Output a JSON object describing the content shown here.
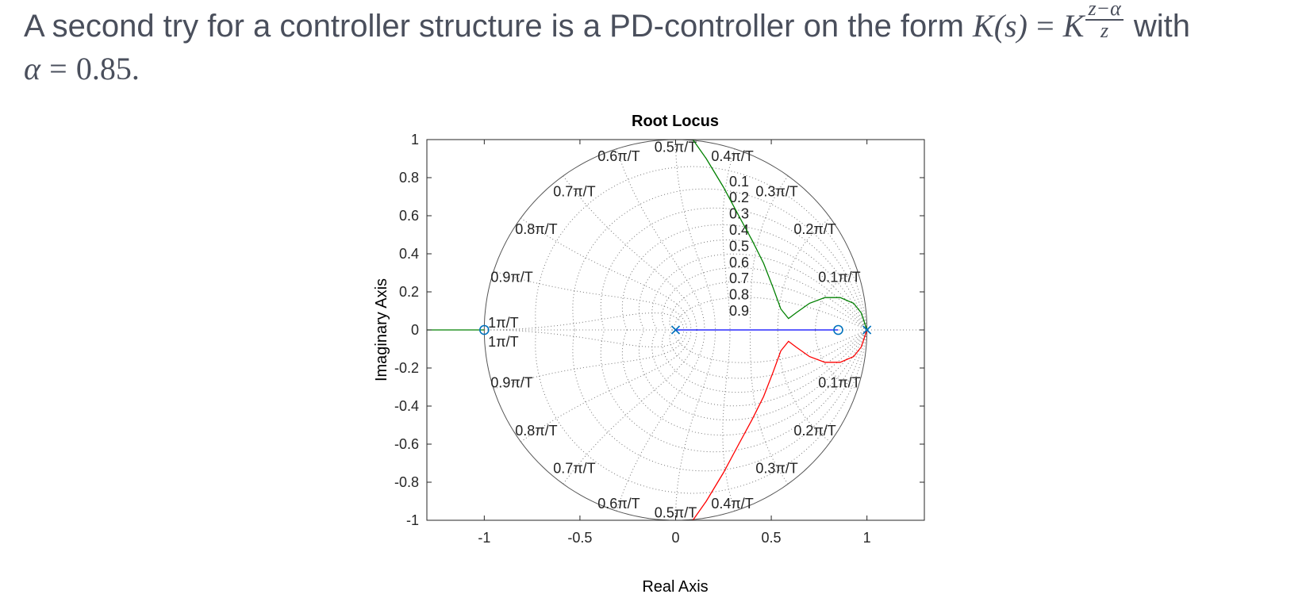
{
  "slide": {
    "intro": "A second try for a controller structure is a PD-controller on the form",
    "math_lhs": "K(s)",
    "math_eq": "=",
    "math_K": "K",
    "frac_num": "z−α",
    "frac_den": "z",
    "with": "with",
    "alpha_sym": "α",
    "alpha_val": "0.85."
  },
  "chart_data": {
    "type": "line",
    "title": "Root Locus",
    "xlabel": "Real Axis",
    "ylabel": "Imaginary Axis",
    "xlim": [
      -1.3,
      1.3
    ],
    "ylim": [
      -1,
      1
    ],
    "xticks": [
      -1,
      -0.5,
      0,
      0.5,
      1
    ],
    "xtick_labels": [
      "-1",
      "-0.5",
      "0",
      "0.5",
      "1"
    ],
    "yticks": [
      1,
      0.8,
      0.6,
      0.4,
      0.2,
      0,
      -0.2,
      -0.4,
      -0.6,
      -0.8,
      -1
    ],
    "ytick_labels": [
      "1",
      "0.8",
      "0.6",
      "0.4",
      "0.2",
      "0",
      "-0.2",
      "-0.4",
      "-0.6",
      "-0.8",
      "-1"
    ],
    "grid": "zgrid",
    "zeta_grid": [
      0.1,
      0.2,
      0.3,
      0.4,
      0.5,
      0.6,
      0.7,
      0.8,
      0.9
    ],
    "wn_grid": [
      0.1,
      0.2,
      0.3,
      0.4,
      0.5,
      0.6,
      0.7,
      0.8,
      0.9,
      1
    ],
    "zeta_labels": [
      "0.1",
      "0.2",
      "0.3",
      "0.4",
      "0.5",
      "0.6",
      "0.7",
      "0.8",
      "0.9"
    ],
    "wn_labels_upper": [
      "0.1π/T",
      "0.2π/T",
      "0.3π/T",
      "0.4π/T",
      "0.5π/T",
      "0.6π/T",
      "0.7π/T",
      "0.8π/T",
      "0.9π/T",
      "1π/T"
    ],
    "wn_labels_lower": [
      "0.1π/T",
      "0.2π/T",
      "0.3π/T",
      "0.4π/T",
      "0.5π/T",
      "0.6π/T",
      "0.7π/T",
      "0.8π/T",
      "0.9π/T",
      "1π/T"
    ],
    "poles": [
      [
        0,
        0
      ],
      [
        1,
        0
      ]
    ],
    "zeros": [
      [
        -1,
        0
      ],
      [
        0.85,
        0
      ]
    ],
    "series": [
      {
        "color": "#0000ff",
        "points": [
          [
            0,
            0
          ],
          [
            0.85,
            0
          ]
        ]
      },
      {
        "color": "#008000",
        "points": [
          [
            0.09,
            1
          ],
          [
            0.16,
            0.9
          ],
          [
            0.25,
            0.75
          ],
          [
            0.33,
            0.6
          ],
          [
            0.4,
            0.47
          ],
          [
            0.46,
            0.35
          ],
          [
            0.51,
            0.22
          ],
          [
            0.55,
            0.11
          ],
          [
            0.59,
            0.06
          ],
          [
            0.63,
            0.09
          ],
          [
            0.7,
            0.14
          ],
          [
            0.78,
            0.17
          ],
          [
            0.86,
            0.17
          ],
          [
            0.93,
            0.14
          ],
          [
            0.97,
            0.09
          ],
          [
            1,
            0
          ]
        ]
      },
      {
        "color": "#ff0000",
        "points": [
          [
            0.09,
            -1
          ],
          [
            0.16,
            -0.9
          ],
          [
            0.25,
            -0.75
          ],
          [
            0.33,
            -0.6
          ],
          [
            0.4,
            -0.47
          ],
          [
            0.46,
            -0.35
          ],
          [
            0.51,
            -0.22
          ],
          [
            0.55,
            -0.11
          ],
          [
            0.59,
            -0.06
          ],
          [
            0.63,
            -0.09
          ],
          [
            0.7,
            -0.14
          ],
          [
            0.78,
            -0.17
          ],
          [
            0.86,
            -0.17
          ],
          [
            0.93,
            -0.14
          ],
          [
            0.97,
            -0.09
          ],
          [
            1,
            0
          ]
        ]
      },
      {
        "color": "#008000",
        "points": [
          [
            -1.3,
            0
          ],
          [
            -1,
            0
          ]
        ]
      }
    ]
  }
}
